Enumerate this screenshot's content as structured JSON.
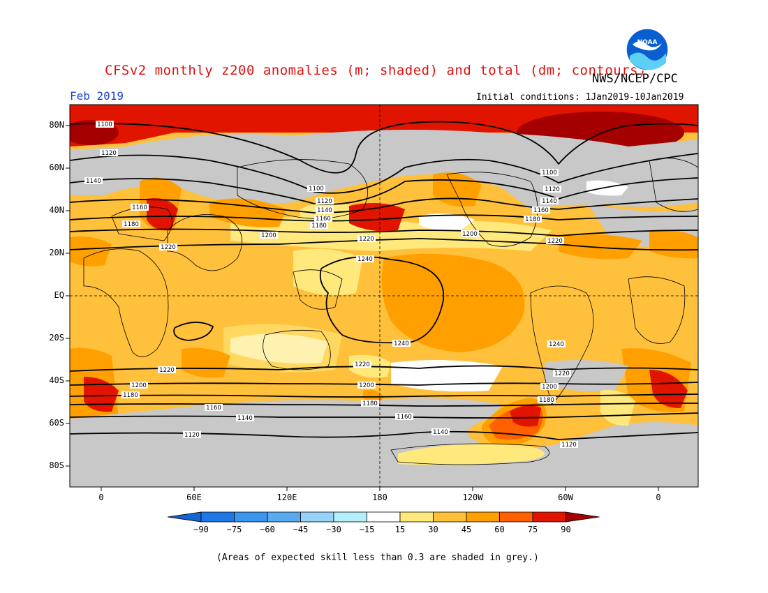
{
  "title": "CFSv2 monthly z200 anomalies (m; shaded) and total (dm; contours)",
  "agency": "NWS/NCEP/CPC",
  "logo_text": "NOAA",
  "period": "Feb 2019",
  "initial_conditions": "Initial conditions: 1Jan2019-10Jan2019",
  "footnote": "(Areas of expected skill less than 0.3 are shaded in grey.)",
  "lat_labels": [
    "80N",
    "60N",
    "40N",
    "20N",
    "EQ",
    "20S",
    "40S",
    "60S",
    "80S"
  ],
  "lon_labels": [
    "0",
    "60E",
    "120E",
    "180",
    "120W",
    "60W",
    "0"
  ],
  "colorbar": {
    "labels": [
      "-90",
      "-75",
      "-60",
      "-45",
      "-30",
      "-15",
      "15",
      "30",
      "45",
      "60",
      "75",
      "90"
    ],
    "colors": [
      "#1464d2",
      "#1e78e6",
      "#3c96f0",
      "#5aaaf0",
      "#96d2fa",
      "#b4f0fa",
      "#ffffff",
      "#ffe87c",
      "#ffc03c",
      "#ffa000",
      "#ff6000",
      "#e11400",
      "#a50000"
    ]
  },
  "contour_labels": [
    "1100",
    "1120",
    "1140",
    "1160",
    "1180",
    "1200",
    "1220",
    "1240"
  ],
  "colors": {
    "grey_low_skill": "#c8c8c8",
    "title_red": "#e01010",
    "period_blue": "#1a3fd0"
  }
}
